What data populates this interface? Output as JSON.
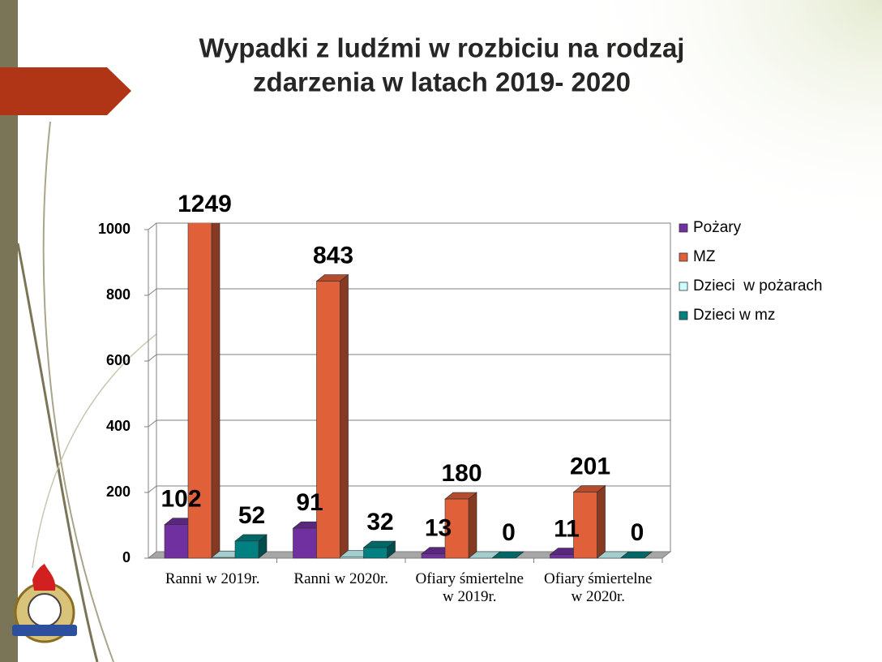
{
  "chart_data": {
    "type": "bar3d",
    "title": [
      "Wypadki z ludźmi w rozbiciu na rodzaj",
      "zdarzenia w latach 2019- 2020"
    ],
    "categories": [
      "Ranni w 2019r.",
      "Ranni w 2020r.",
      "Ofiary śmiertelne w 2019r.",
      "Ofiary śmiertelne w 2020r."
    ],
    "series": [
      {
        "name": "Pożary",
        "color": "#7030a0",
        "values": [
          102,
          91,
          13,
          11
        ],
        "labeled": true
      },
      {
        "name": "MZ",
        "color": "#e0603a",
        "values": [
          1249,
          843,
          180,
          201
        ],
        "labeled": true
      },
      {
        "name": "Dzieci  w pożarach",
        "color": "#ccffff",
        "values": [
          2,
          4,
          0,
          0
        ],
        "labeled": false
      },
      {
        "name": "Dzieci w mz",
        "color": "#008080",
        "values": [
          52,
          32,
          0,
          0
        ],
        "labeled": true
      }
    ],
    "ylim": [
      0,
      1000
    ],
    "yticks": [
      0,
      200,
      400,
      600,
      800,
      1000
    ],
    "grid": true,
    "legend": "right"
  }
}
